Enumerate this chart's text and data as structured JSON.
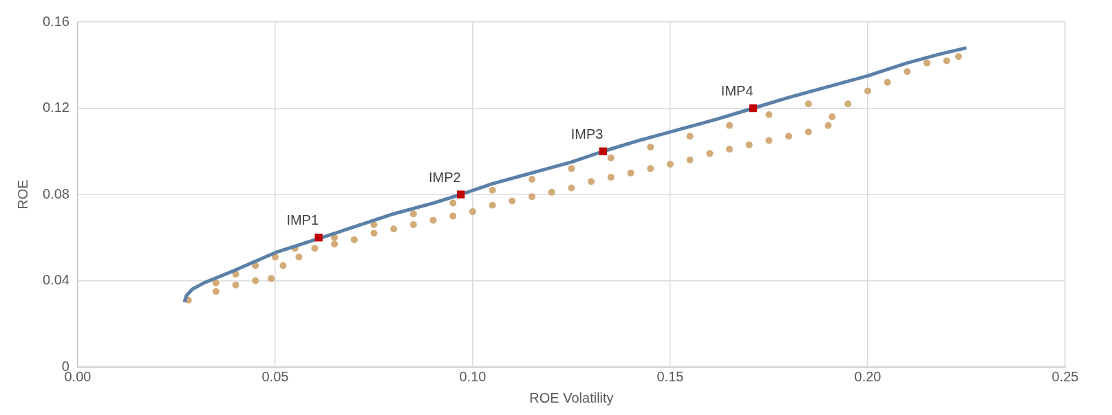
{
  "chart_data": {
    "type": "scatter",
    "xlabel": "ROE Volatility",
    "ylabel": "ROE",
    "xlim": [
      0,
      0.25
    ],
    "ylim": [
      0,
      0.16
    ],
    "xticks": [
      {
        "value": 0,
        "label": "0.00"
      },
      {
        "value": 0.05,
        "label": "0.05"
      },
      {
        "value": 0.1,
        "label": "0.10"
      },
      {
        "value": 0.15,
        "label": "0.15"
      },
      {
        "value": 0.2,
        "label": "0.20"
      },
      {
        "value": 0.25,
        "label": "0.25"
      }
    ],
    "yticks": [
      0,
      0.04,
      0.08,
      0.12,
      0.16
    ],
    "grid": true,
    "legend": false,
    "series": [
      {
        "marker": "circle",
        "color": "#d2ab78",
        "x": [
          0.028,
          0.035,
          0.04,
          0.045,
          0.049,
          0.052,
          0.056,
          0.06,
          0.035,
          0.04,
          0.045,
          0.05,
          0.055,
          0.065,
          0.07,
          0.075,
          0.08,
          0.085,
          0.09,
          0.095,
          0.1,
          0.105,
          0.11,
          0.115,
          0.12,
          0.125,
          0.13,
          0.135,
          0.14,
          0.145,
          0.15,
          0.155,
          0.16,
          0.165,
          0.17,
          0.175,
          0.18,
          0.185,
          0.19,
          0.065,
          0.075,
          0.085,
          0.095,
          0.105,
          0.115,
          0.125,
          0.135,
          0.145,
          0.155,
          0.165,
          0.175,
          0.185,
          0.191,
          0.195,
          0.2,
          0.205,
          0.21,
          0.215,
          0.22,
          0.223
        ],
        "values": [
          0.031,
          0.035,
          0.038,
          0.04,
          0.041,
          0.047,
          0.051,
          0.055,
          0.039,
          0.043,
          0.047,
          0.051,
          0.055,
          0.057,
          0.059,
          0.062,
          0.064,
          0.066,
          0.068,
          0.07,
          0.072,
          0.075,
          0.077,
          0.079,
          0.081,
          0.083,
          0.086,
          0.088,
          0.09,
          0.092,
          0.094,
          0.096,
          0.099,
          0.101,
          0.103,
          0.105,
          0.107,
          0.109,
          0.112,
          0.06,
          0.066,
          0.071,
          0.076,
          0.082,
          0.087,
          0.092,
          0.097,
          0.102,
          0.107,
          0.112,
          0.117,
          0.122,
          0.116,
          0.122,
          0.128,
          0.132,
          0.137,
          0.141,
          0.142,
          0.144
        ]
      },
      {
        "type": "line",
        "marker": "none",
        "color": "#5b80a8",
        "x": [
          0.027,
          0.0275,
          0.029,
          0.032,
          0.036,
          0.04,
          0.045,
          0.05,
          0.055,
          0.066,
          0.07,
          0.08,
          0.09,
          0.097,
          0.105,
          0.115,
          0.125,
          0.133,
          0.142,
          0.152,
          0.162,
          0.171,
          0.18,
          0.19,
          0.2,
          0.21,
          0.218,
          0.225
        ],
        "values": [
          0.03,
          0.033,
          0.036,
          0.039,
          0.042,
          0.045,
          0.049,
          0.053,
          0.056,
          0.0625,
          0.065,
          0.071,
          0.076,
          0.08,
          0.085,
          0.09,
          0.095,
          0.1,
          0.105,
          0.11,
          0.115,
          0.12,
          0.125,
          0.13,
          0.135,
          0.141,
          0.145,
          0.148
        ]
      },
      {
        "marker": "square",
        "color": "#c00000",
        "x": [
          0.061,
          0.097,
          0.133,
          0.171
        ],
        "values": [
          0.06,
          0.08,
          0.1,
          0.12
        ],
        "value_labels": [
          "IMP1",
          "IMP2",
          "IMP3",
          "IMP4"
        ]
      }
    ]
  }
}
